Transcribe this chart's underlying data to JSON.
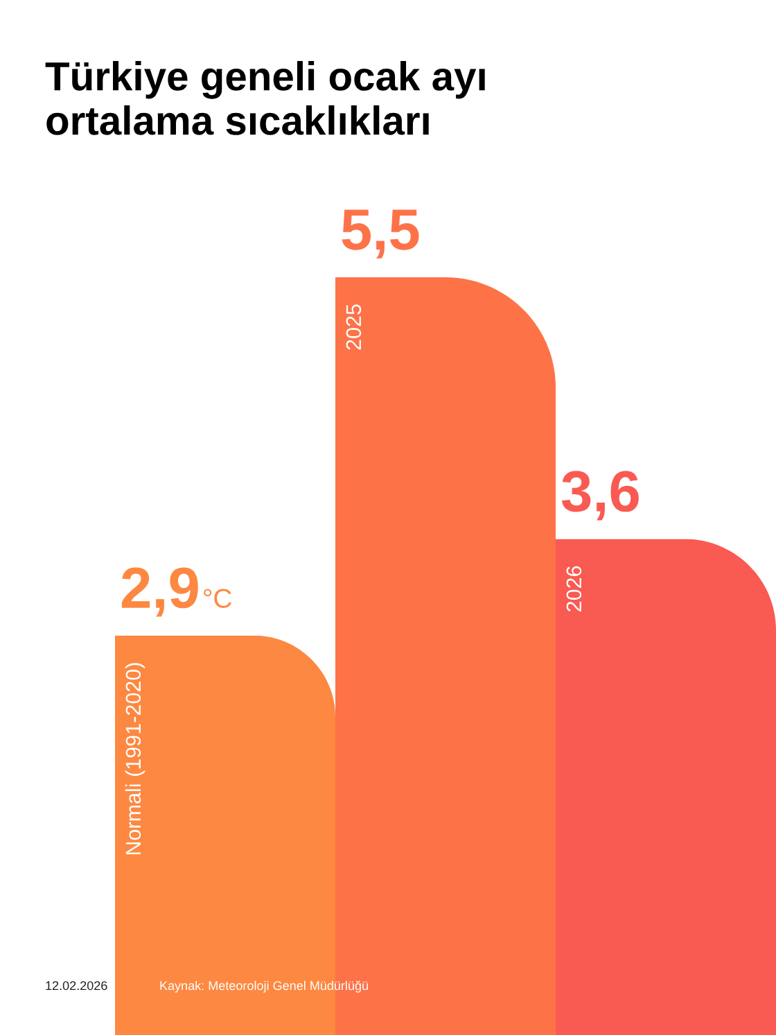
{
  "chart_data": {
    "type": "bar",
    "title": "Türkiye geneli ocak ayı\nortalama sıcaklıkları",
    "categories": [
      "Normali (1991-2020)",
      "2025",
      "2026"
    ],
    "values": [
      2.9,
      5.5,
      3.6
    ],
    "colors": [
      "#fd8841",
      "#fe7248",
      "#f95a52"
    ],
    "value_labels": [
      "2,9°C",
      "5,5",
      "3,6"
    ],
    "tick_labels": "x",
    "annotations": [
      "12.02.2026",
      "Kaynak: Meteoroloji Genel Müdürlüğü"
    ]
  }
}
